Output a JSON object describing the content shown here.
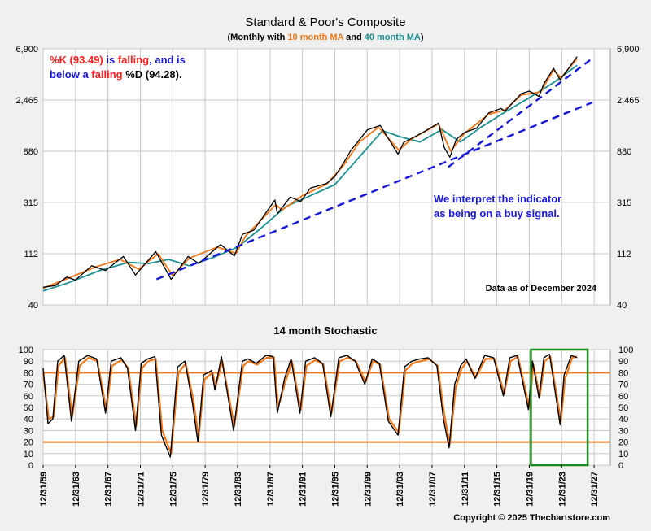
{
  "chart_data": [
    {
      "type": "line",
      "title": "Standard & Poor's Composite",
      "subtitle_parts": [
        "(Monthly with ",
        "10 month MA",
        " and ",
        "40 month MA",
        ")"
      ],
      "yscale": "log",
      "ylim": [
        40,
        6900
      ],
      "yticks": [
        40,
        112,
        315,
        880,
        2465,
        6900
      ],
      "ytick_labels": [
        "40",
        "112",
        "315",
        "880",
        "2,465",
        "6,900"
      ],
      "xlim": [
        1959.0,
        2029.0
      ],
      "grid": true,
      "series": [
        {
          "name": "Standard & Poor's Composite",
          "color": "#000000",
          "x": [
            1959.0,
            1960.5,
            1961.9,
            1963.0,
            1965.0,
            1966.7,
            1968.9,
            1970.4,
            1972.9,
            1974.8,
            1976.9,
            1978.2,
            1980.9,
            1982.6,
            1983.6,
            1985.0,
            1987.6,
            1987.9,
            1989.5,
            1990.8,
            1992.0,
            1994.0,
            1995.0,
            1996.0,
            1997.0,
            1998.0,
            1999.0,
            2000.6,
            2002.8,
            2003.5,
            2004.5,
            2006.0,
            2007.8,
            2008.5,
            2009.2,
            2010.0,
            2011.0,
            2012.5,
            2014.0,
            2015.5,
            2016.0,
            2018.0,
            2019.0,
            2020.2,
            2020.8,
            2022.0,
            2022.8,
            2023.5,
            2024.9
          ],
          "y": [
            57,
            59,
            70,
            66,
            88,
            80,
            106,
            73,
            117,
            67,
            106,
            92,
            135,
            107,
            165,
            180,
            330,
            250,
            350,
            320,
            420,
            460,
            530,
            680,
            900,
            1100,
            1350,
            1480,
            830,
            1050,
            1140,
            1300,
            1550,
            950,
            780,
            1120,
            1280,
            1400,
            1900,
            2080,
            1970,
            2800,
            2950,
            2650,
            3420,
            4650,
            3700,
            4300,
            5900
          ]
        },
        {
          "name": "10 month MA",
          "color": "#f07818",
          "x": [
            1959.0,
            1962.0,
            1965.5,
            1968.5,
            1970.8,
            1973.2,
            1975.0,
            1977.0,
            1980.5,
            1982.8,
            1984.0,
            1987.7,
            1988.5,
            1991.0,
            1994.0,
            1996.0,
            1998.0,
            2000.4,
            2002.9,
            2004.5,
            2007.8,
            2009.3,
            2011.0,
            2014.0,
            2016.0,
            2018.0,
            2020.4,
            2022.0,
            2022.9,
            2024.9
          ],
          "y": [
            56,
            68,
            86,
            100,
            82,
            112,
            72,
            102,
            128,
            113,
            160,
            300,
            270,
            360,
            455,
            650,
            1050,
            1430,
            900,
            1130,
            1520,
            880,
            1260,
            1850,
            2020,
            2720,
            2900,
            4500,
            3850,
            5650
          ]
        },
        {
          "name": "40 month MA",
          "color": "#1a9090",
          "x": [
            1959.0,
            1962.0,
            1966.0,
            1969.5,
            1972.0,
            1974.5,
            1977.0,
            1980.0,
            1983.0,
            1986.0,
            1989.0,
            1992.0,
            1995.0,
            1998.0,
            2000.9,
            2003.0,
            2005.5,
            2008.2,
            2010.5,
            2013.0,
            2016.0,
            2019.0,
            2022.0,
            2024.9
          ],
          "y": [
            53,
            62,
            80,
            94,
            92,
            100,
            88,
            104,
            128,
            190,
            290,
            360,
            450,
            780,
            1330,
            1180,
            1060,
            1360,
            1060,
            1420,
            1930,
            2580,
            3500,
            4950
          ]
        }
      ],
      "trendlines": [
        {
          "color": "#1818d8",
          "x": [
            1973.0,
            2026.8
          ],
          "y": [
            67,
            2350
          ]
        },
        {
          "color": "#1818d8",
          "x": [
            2009.0,
            2026.5
          ],
          "y": [
            640,
            5500
          ]
        }
      ],
      "annotations": {
        "top_left": {
          "line1": [
            {
              "text": "%K (93.49)",
              "color": "#ff2020"
            },
            {
              "text": " is ",
              "color": "#1818d8"
            },
            {
              "text": "falling",
              "color": "#ff2020"
            },
            {
              "text": ", and is",
              "color": "#1818d8"
            }
          ],
          "line2": [
            {
              "text": "below a ",
              "color": "#1818d8"
            },
            {
              "text": "falling",
              "color": "#ff2020"
            },
            {
              "text": " %D",
              "color": "#000000"
            },
            {
              "text": " (94.28).",
              "color": "#000000"
            }
          ]
        },
        "interpret_line1": "We interpret the indicator",
        "interpret_line2": "as being on a buy signal.",
        "interpret_color": "#1818d8",
        "data_as_of": "Data as of December 2024"
      }
    },
    {
      "type": "line",
      "title": "14 month Stochastic",
      "ylim": [
        0,
        100
      ],
      "yticks": [
        0,
        10,
        20,
        30,
        40,
        50,
        60,
        70,
        80,
        90,
        100
      ],
      "xlim": [
        1959.0,
        2029.0
      ],
      "reference_lines": [
        {
          "y": 80,
          "color": "#e87820"
        },
        {
          "y": 20,
          "color": "#e87820"
        }
      ],
      "highlight_box": {
        "x": [
          2019.2,
          2026.2
        ],
        "y": [
          0,
          100
        ],
        "color": "#1a8a1a"
      },
      "xtick_labels": [
        "12/31/59",
        "12/31/63",
        "12/31/67",
        "12/31/71",
        "12/31/75",
        "12/31/79",
        "12/31/83",
        "12/31/87",
        "12/31/91",
        "12/31/95",
        "12/31/99",
        "12/31/03",
        "12/31/07",
        "12/31/11",
        "12/31/15",
        "12/31/19",
        "12/31/23",
        "12/31/27"
      ],
      "xtick_values": [
        1959.0,
        1963.0,
        1967.0,
        1971.0,
        1975.0,
        1979.0,
        1983.0,
        1987.0,
        1991.0,
        1995.0,
        1999.0,
        2003.0,
        2007.0,
        2011.0,
        2015.0,
        2019.0,
        2023.0,
        2027.0
      ],
      "series": [
        {
          "name": "%K",
          "color": "#000000",
          "x": [
            1959.0,
            1959.6,
            1960.2,
            1960.8,
            1961.6,
            1962.5,
            1963.4,
            1964.5,
            1965.6,
            1966.7,
            1967.4,
            1968.6,
            1969.4,
            1970.4,
            1971.1,
            1971.9,
            1972.8,
            1973.6,
            1974.7,
            1975.6,
            1976.5,
            1977.4,
            1978.1,
            1978.8,
            1979.8,
            1980.2,
            1981.0,
            1982.5,
            1983.6,
            1984.3,
            1985.3,
            1986.5,
            1987.4,
            1987.9,
            1988.8,
            1989.6,
            1990.7,
            1991.4,
            1992.5,
            1993.5,
            1994.5,
            1995.5,
            1996.5,
            1997.5,
            1998.7,
            1999.6,
            2000.5,
            2001.6,
            2002.8,
            2003.6,
            2004.5,
            2005.5,
            2006.5,
            2007.6,
            2008.4,
            2009.1,
            2009.8,
            2010.5,
            2011.2,
            2012.3,
            2013.5,
            2014.6,
            2015.8,
            2016.6,
            2017.5,
            2018.9,
            2019.4,
            2020.2,
            2020.8,
            2021.5,
            2022.8,
            2023.3,
            2024.2,
            2024.9
          ],
          "y": [
            84,
            36,
            40,
            90,
            95,
            38,
            90,
            95,
            92,
            45,
            90,
            93,
            84,
            30,
            88,
            92,
            94,
            26,
            7,
            85,
            90,
            55,
            20,
            78,
            82,
            65,
            94,
            30,
            90,
            92,
            88,
            95,
            94,
            45,
            75,
            92,
            45,
            90,
            93,
            88,
            42,
            93,
            95,
            90,
            70,
            92,
            88,
            38,
            26,
            85,
            90,
            92,
            93,
            86,
            40,
            15,
            70,
            86,
            92,
            75,
            95,
            93,
            60,
            93,
            95,
            48,
            90,
            58,
            93,
            96,
            35,
            78,
            95,
            93
          ]
        },
        {
          "name": "%D",
          "color": "#f07818",
          "x": [
            1959.0,
            1959.7,
            1960.3,
            1960.9,
            1961.7,
            1962.6,
            1963.5,
            1964.6,
            1965.7,
            1966.8,
            1967.5,
            1968.7,
            1969.5,
            1970.5,
            1971.2,
            1972.0,
            1972.9,
            1973.7,
            1974.8,
            1975.7,
            1976.6,
            1977.5,
            1978.2,
            1978.9,
            1979.9,
            1980.3,
            1981.1,
            1982.6,
            1983.7,
            1984.4,
            1985.4,
            1986.6,
            1987.5,
            1988.0,
            1988.9,
            1989.7,
            1990.8,
            1991.5,
            1992.6,
            1993.6,
            1994.6,
            1995.6,
            1996.6,
            1997.6,
            1998.8,
            1999.7,
            2000.6,
            2001.7,
            2002.9,
            2003.7,
            2004.6,
            2005.6,
            2006.6,
            2007.7,
            2008.5,
            2009.2,
            2009.9,
            2010.6,
            2011.3,
            2012.4,
            2013.6,
            2014.7,
            2015.9,
            2016.7,
            2017.6,
            2019.0,
            2019.5,
            2020.3,
            2020.9,
            2021.6,
            2022.9,
            2023.4,
            2024.3,
            2024.9
          ],
          "y": [
            80,
            40,
            42,
            86,
            93,
            42,
            86,
            93,
            90,
            48,
            86,
            91,
            84,
            34,
            84,
            90,
            92,
            30,
            10,
            80,
            88,
            58,
            24,
            74,
            80,
            68,
            90,
            34,
            86,
            90,
            87,
            93,
            93,
            50,
            72,
            90,
            48,
            86,
            91,
            87,
            45,
            90,
            93,
            90,
            72,
            90,
            87,
            40,
            28,
            82,
            88,
            90,
            92,
            86,
            44,
            18,
            66,
            83,
            90,
            76,
            92,
            92,
            62,
            90,
            94,
            50,
            87,
            60,
            90,
            94,
            38,
            74,
            93,
            94
          ]
        }
      ]
    }
  ],
  "copyright": "Copyright © 2025 Thechartstore.com"
}
